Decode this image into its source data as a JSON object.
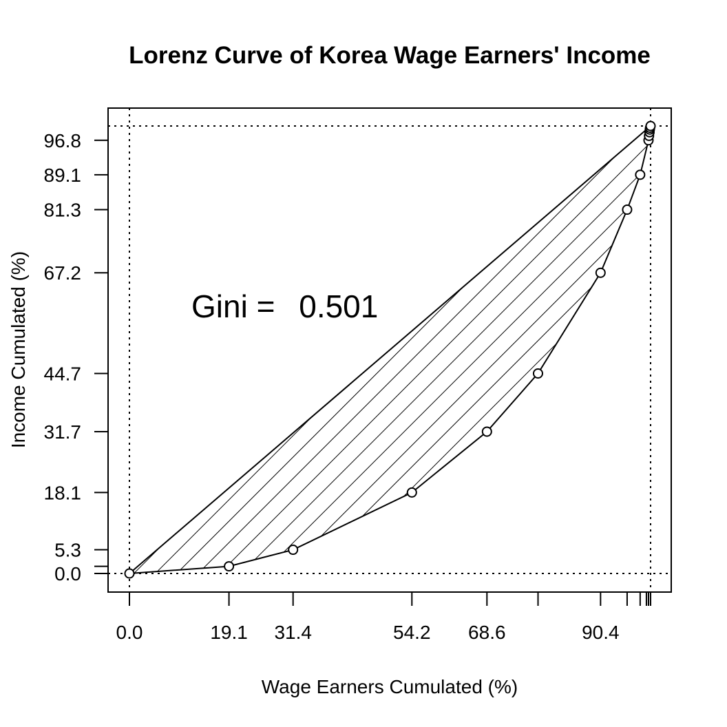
{
  "chart_data": {
    "type": "line",
    "title": "Lorenz Curve of Korea Wage Earners' Income",
    "xlabel": "Wage Earners Cumulated (%)",
    "ylabel": "Income Cumulated (%)",
    "xlim": [
      0,
      100
    ],
    "ylim": [
      0,
      100
    ],
    "annotation": {
      "prefix": "Gini =",
      "value": "0.501"
    },
    "x_tick_values": [
      0,
      19.1,
      31.4,
      54.2,
      68.6,
      78.4,
      90.4,
      95.5,
      98.0,
      99.2,
      99.6,
      100
    ],
    "x_tick_labels": [
      "0.0",
      "19.1",
      "31.4",
      "54.2",
      "68.6",
      "",
      "90.4",
      "",
      "",
      "",
      "",
      ""
    ],
    "y_tick_values": [
      0,
      1.6,
      5.3,
      18.1,
      31.7,
      44.7,
      67.2,
      81.3,
      89.1,
      96.8
    ],
    "y_tick_labels": [
      "0.0",
      "",
      "5.3",
      "18.1",
      "31.7",
      "44.7",
      "67.2",
      "81.3",
      "89.1",
      "96.8"
    ],
    "series": [
      {
        "x": [
          0,
          19.1,
          31.4,
          54.2,
          68.6,
          78.4,
          90.4,
          95.5,
          98.0,
          99.6,
          99.7,
          99.8,
          99.85,
          99.9,
          100
        ],
        "y": [
          0,
          1.6,
          5.3,
          18.1,
          31.7,
          44.7,
          67.2,
          81.3,
          89.1,
          96.8,
          97.8,
          98.6,
          99.2,
          99.6,
          100
        ]
      }
    ],
    "hatched_area": "between equality line and Lorenz curve",
    "reference_lines": "dotted at x=0, x=100, y=0, y=100",
    "grid": false
  }
}
